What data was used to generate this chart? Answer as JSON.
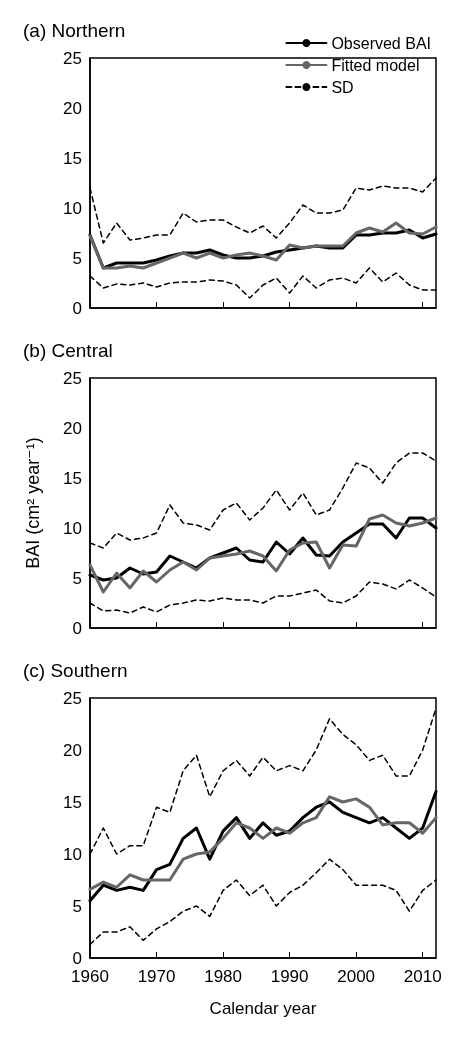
{
  "chart_data": [
    {
      "type": "line",
      "title": "(a) Northern",
      "x": [
        1960,
        1962,
        1964,
        1966,
        1968,
        1970,
        1972,
        1974,
        1976,
        1978,
        1980,
        1982,
        1984,
        1986,
        1988,
        1990,
        1992,
        1994,
        1996,
        1998,
        2000,
        2002,
        2004,
        2006,
        2008,
        2010,
        2012
      ],
      "xlim": [
        1960,
        2012
      ],
      "xticks": [
        1960,
        1970,
        1980,
        1990,
        2000,
        2010
      ],
      "ylim": [
        0,
        25
      ],
      "yticks": [
        0,
        5,
        10,
        15,
        20,
        25
      ],
      "tick_labels": "y",
      "legend": "top right",
      "series": [
        {
          "name": "Observed BAI",
          "color": "#000000",
          "line_style": "solid",
          "values": [
            7.3,
            4.0,
            4.5,
            4.5,
            4.5,
            4.8,
            5.2,
            5.5,
            5.5,
            5.8,
            5.3,
            5.0,
            5.0,
            5.2,
            5.6,
            5.8,
            6.0,
            6.2,
            6.0,
            6.0,
            7.3,
            7.3,
            7.5,
            7.5,
            7.8,
            7.0,
            7.4
          ]
        },
        {
          "name": "Fitted model",
          "color": "#666666",
          "line_style": "solid",
          "values": [
            7.2,
            4.0,
            4.0,
            4.2,
            4.0,
            4.5,
            5.0,
            5.5,
            5.0,
            5.5,
            5.0,
            5.3,
            5.5,
            5.2,
            4.8,
            6.3,
            6.0,
            6.2,
            6.2,
            6.2,
            7.5,
            8.0,
            7.6,
            8.5,
            7.5,
            7.4,
            8.1
          ]
        },
        {
          "name": "SD",
          "color": "#000000",
          "line_style": "dashed",
          "values": [
            12.0,
            6.5,
            8.5,
            6.8,
            7.0,
            7.3,
            7.3,
            9.5,
            8.6,
            8.8,
            8.8,
            8.1,
            7.5,
            8.2,
            7.0,
            8.5,
            10.3,
            9.5,
            9.5,
            9.8,
            12.0,
            11.8,
            12.2,
            12.0,
            12.0,
            11.6,
            13.0
          ]
        },
        {
          "color": "#000000",
          "line_style": "dashed",
          "values": [
            3.2,
            2.0,
            2.4,
            2.3,
            2.5,
            2.1,
            2.5,
            2.6,
            2.6,
            2.8,
            2.7,
            2.3,
            1.0,
            2.3,
            3.0,
            1.5,
            3.2,
            2.0,
            2.8,
            3.0,
            2.5,
            4.0,
            2.6,
            3.5,
            2.3,
            1.8,
            1.8
          ]
        }
      ]
    },
    {
      "type": "line",
      "title": "(b) Central",
      "ylabel": "BAI (cm² year⁻¹)",
      "x": [
        1960,
        1962,
        1964,
        1966,
        1968,
        1970,
        1972,
        1974,
        1976,
        1978,
        1980,
        1982,
        1984,
        1986,
        1988,
        1990,
        1992,
        1994,
        1996,
        1998,
        2000,
        2002,
        2004,
        2006,
        2008,
        2010,
        2012
      ],
      "xlim": [
        1960,
        2012
      ],
      "xticks": [
        1960,
        1970,
        1980,
        1990,
        2000,
        2010
      ],
      "ylim": [
        0,
        25
      ],
      "yticks": [
        0,
        5,
        10,
        15,
        20,
        25
      ],
      "tick_labels": "y",
      "series": [
        {
          "color": "#000000",
          "line_style": "solid",
          "values": [
            5.3,
            4.8,
            5.0,
            6.0,
            5.4,
            5.6,
            7.2,
            6.6,
            6.0,
            7.0,
            7.5,
            8.0,
            6.8,
            6.6,
            8.6,
            7.4,
            9.0,
            7.3,
            7.2,
            8.6,
            9.5,
            10.4,
            10.4,
            9.0,
            11.0,
            11.0,
            10.0
          ]
        },
        {
          "color": "#666666",
          "line_style": "solid",
          "values": [
            6.3,
            3.6,
            5.5,
            4.0,
            5.7,
            4.6,
            5.8,
            6.6,
            5.8,
            7.0,
            7.2,
            7.4,
            7.7,
            7.2,
            5.7,
            7.8,
            8.5,
            8.6,
            6.0,
            8.3,
            8.2,
            10.9,
            11.3,
            10.5,
            10.2,
            10.5,
            11.0
          ]
        },
        {
          "color": "#000000",
          "line_style": "dashed",
          "values": [
            8.5,
            8.0,
            9.5,
            8.8,
            9.0,
            9.5,
            12.3,
            10.5,
            10.3,
            9.8,
            11.8,
            12.5,
            10.8,
            12.0,
            13.8,
            11.8,
            13.5,
            11.3,
            11.8,
            14.0,
            16.5,
            16.0,
            14.5,
            16.5,
            17.5,
            17.5,
            16.7
          ]
        },
        {
          "color": "#000000",
          "line_style": "dashed",
          "values": [
            2.5,
            1.7,
            1.8,
            1.5,
            2.1,
            1.6,
            2.3,
            2.5,
            2.8,
            2.7,
            3.0,
            2.8,
            2.8,
            2.5,
            3.2,
            3.2,
            3.5,
            3.8,
            2.7,
            2.5,
            3.2,
            4.6,
            4.4,
            3.9,
            4.8,
            4.0,
            3.1
          ]
        }
      ]
    },
    {
      "type": "line",
      "title": "(c) Southern",
      "xlabel": "Calendar year",
      "x": [
        1960,
        1962,
        1964,
        1966,
        1968,
        1970,
        1972,
        1974,
        1976,
        1978,
        1980,
        1982,
        1984,
        1986,
        1988,
        1990,
        1992,
        1994,
        1996,
        1998,
        2000,
        2002,
        2004,
        2006,
        2008,
        2010,
        2012
      ],
      "xlim": [
        1960,
        2012
      ],
      "xticks": [
        1960,
        1970,
        1980,
        1990,
        2000,
        2010
      ],
      "ylim": [
        0,
        25
      ],
      "yticks": [
        0,
        5,
        10,
        15,
        20,
        25
      ],
      "series": [
        {
          "color": "#000000",
          "line_style": "solid",
          "values": [
            5.5,
            7.0,
            6.5,
            6.8,
            6.5,
            8.5,
            9.0,
            11.5,
            12.5,
            9.5,
            12.2,
            13.5,
            11.5,
            13.0,
            11.8,
            12.2,
            13.5,
            14.5,
            15.0,
            14.0,
            13.5,
            13.0,
            13.5,
            12.5,
            11.5,
            12.5,
            16.0
          ]
        },
        {
          "color": "#666666",
          "line_style": "solid",
          "values": [
            6.6,
            7.3,
            6.8,
            8.0,
            7.5,
            7.5,
            7.5,
            9.5,
            10.0,
            10.2,
            11.5,
            13.0,
            12.5,
            11.5,
            12.5,
            12.0,
            13.0,
            13.5,
            15.5,
            15.0,
            15.3,
            14.5,
            12.8,
            13.0,
            13.0,
            12.0,
            13.5
          ]
        },
        {
          "color": "#000000",
          "line_style": "dashed",
          "values": [
            10.0,
            12.5,
            10.0,
            10.8,
            10.8,
            14.5,
            14.0,
            18.0,
            19.5,
            15.5,
            18.0,
            19.0,
            17.5,
            19.3,
            18.0,
            18.5,
            18.0,
            20.0,
            23.0,
            21.5,
            20.5,
            19.0,
            19.5,
            17.5,
            17.5,
            20.0,
            24.0
          ]
        },
        {
          "color": "#000000",
          "line_style": "dashed",
          "values": [
            1.3,
            2.5,
            2.5,
            3.0,
            1.7,
            2.8,
            3.5,
            4.5,
            5.0,
            4.0,
            6.5,
            7.5,
            6.0,
            7.0,
            5.0,
            6.3,
            7.0,
            8.2,
            9.5,
            8.5,
            7.0,
            7.0,
            7.0,
            6.5,
            4.5,
            6.5,
            7.5
          ]
        }
      ]
    }
  ]
}
